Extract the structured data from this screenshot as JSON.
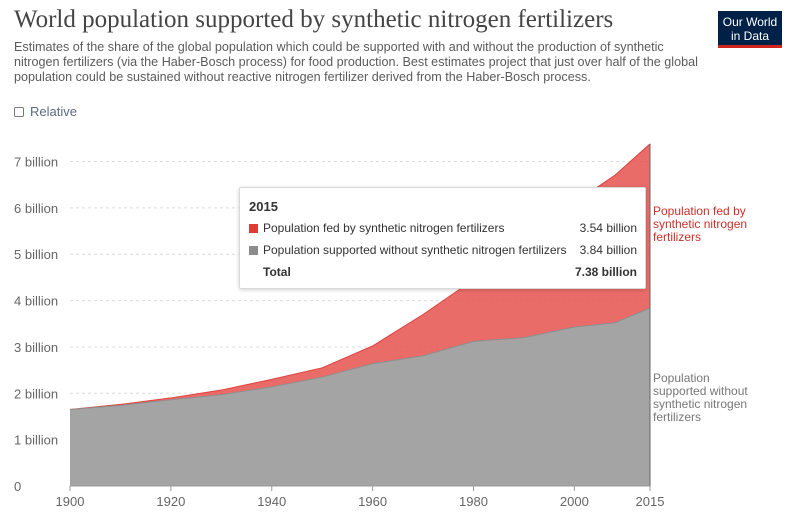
{
  "title": "World population supported by synthetic nitrogen fertilizers",
  "subtitle": "Estimates of the share of the global population which could be supported with and without the production of synthetic nitrogen fertilizers (via the Haber-Bosch process) for food production. Best estimates project that just over half of the global population could be sustained without reactive nitrogen fertilizer derived from the Haber-Bosch process.",
  "logo": {
    "line1": "Our World",
    "line2": "in Data"
  },
  "controls": {
    "relative_label": "Relative"
  },
  "colors": {
    "fertilizer": "#e5524f",
    "without": "#a4a4a4",
    "logo_bg": "#002147",
    "logo_accent": "#ce261e"
  },
  "tooltip": {
    "year": "2015",
    "rows": [
      {
        "label": "Population fed by synthetic nitrogen fertilizers",
        "value": "3.54 billion",
        "color": "#e03b36"
      },
      {
        "label": "Population supported without synthetic nitrogen fertilizers",
        "value": "3.84 billion",
        "color": "#8c8c8c"
      }
    ],
    "total_label": "Total",
    "total_value": "7.38 billion"
  },
  "side_labels": {
    "fertilizer": [
      "Population fed by",
      "synthetic nitrogen",
      "fertilizers"
    ],
    "without": [
      "Population",
      "supported without",
      "synthetic nitrogen",
      "fertilizers"
    ]
  },
  "chart_data": {
    "type": "area",
    "stacked": true,
    "x": [
      1900,
      1910,
      1920,
      1930,
      1940,
      1950,
      1960,
      1970,
      1980,
      1990,
      2000,
      2008,
      2015
    ],
    "series": [
      {
        "name": "Population supported without synthetic nitrogen fertilizers",
        "values": [
          1.65,
          1.74,
          1.86,
          1.97,
          2.14,
          2.35,
          2.64,
          2.81,
          3.12,
          3.2,
          3.43,
          3.52,
          3.84
        ]
      },
      {
        "name": "Population fed by synthetic nitrogen fertilizers",
        "values": [
          0.0,
          0.02,
          0.04,
          0.1,
          0.16,
          0.2,
          0.38,
          0.89,
          1.33,
          2.09,
          2.68,
          3.18,
          3.54
        ]
      }
    ],
    "ylim": [
      0,
      7.4
    ],
    "y_ticks": [
      0,
      1,
      2,
      3,
      4,
      5,
      6,
      7
    ],
    "y_tick_labels": [
      "0",
      "1 billion",
      "2 billion",
      "3 billion",
      "4 billion",
      "5 billion",
      "6 billion",
      "7 billion"
    ],
    "x_ticks": [
      1900,
      1920,
      1940,
      1960,
      1980,
      2000,
      2015
    ],
    "x_tick_labels": [
      "1900",
      "1920",
      "1940",
      "1960",
      "1980",
      "2000",
      "2015"
    ],
    "grid": true,
    "legend": "right"
  }
}
